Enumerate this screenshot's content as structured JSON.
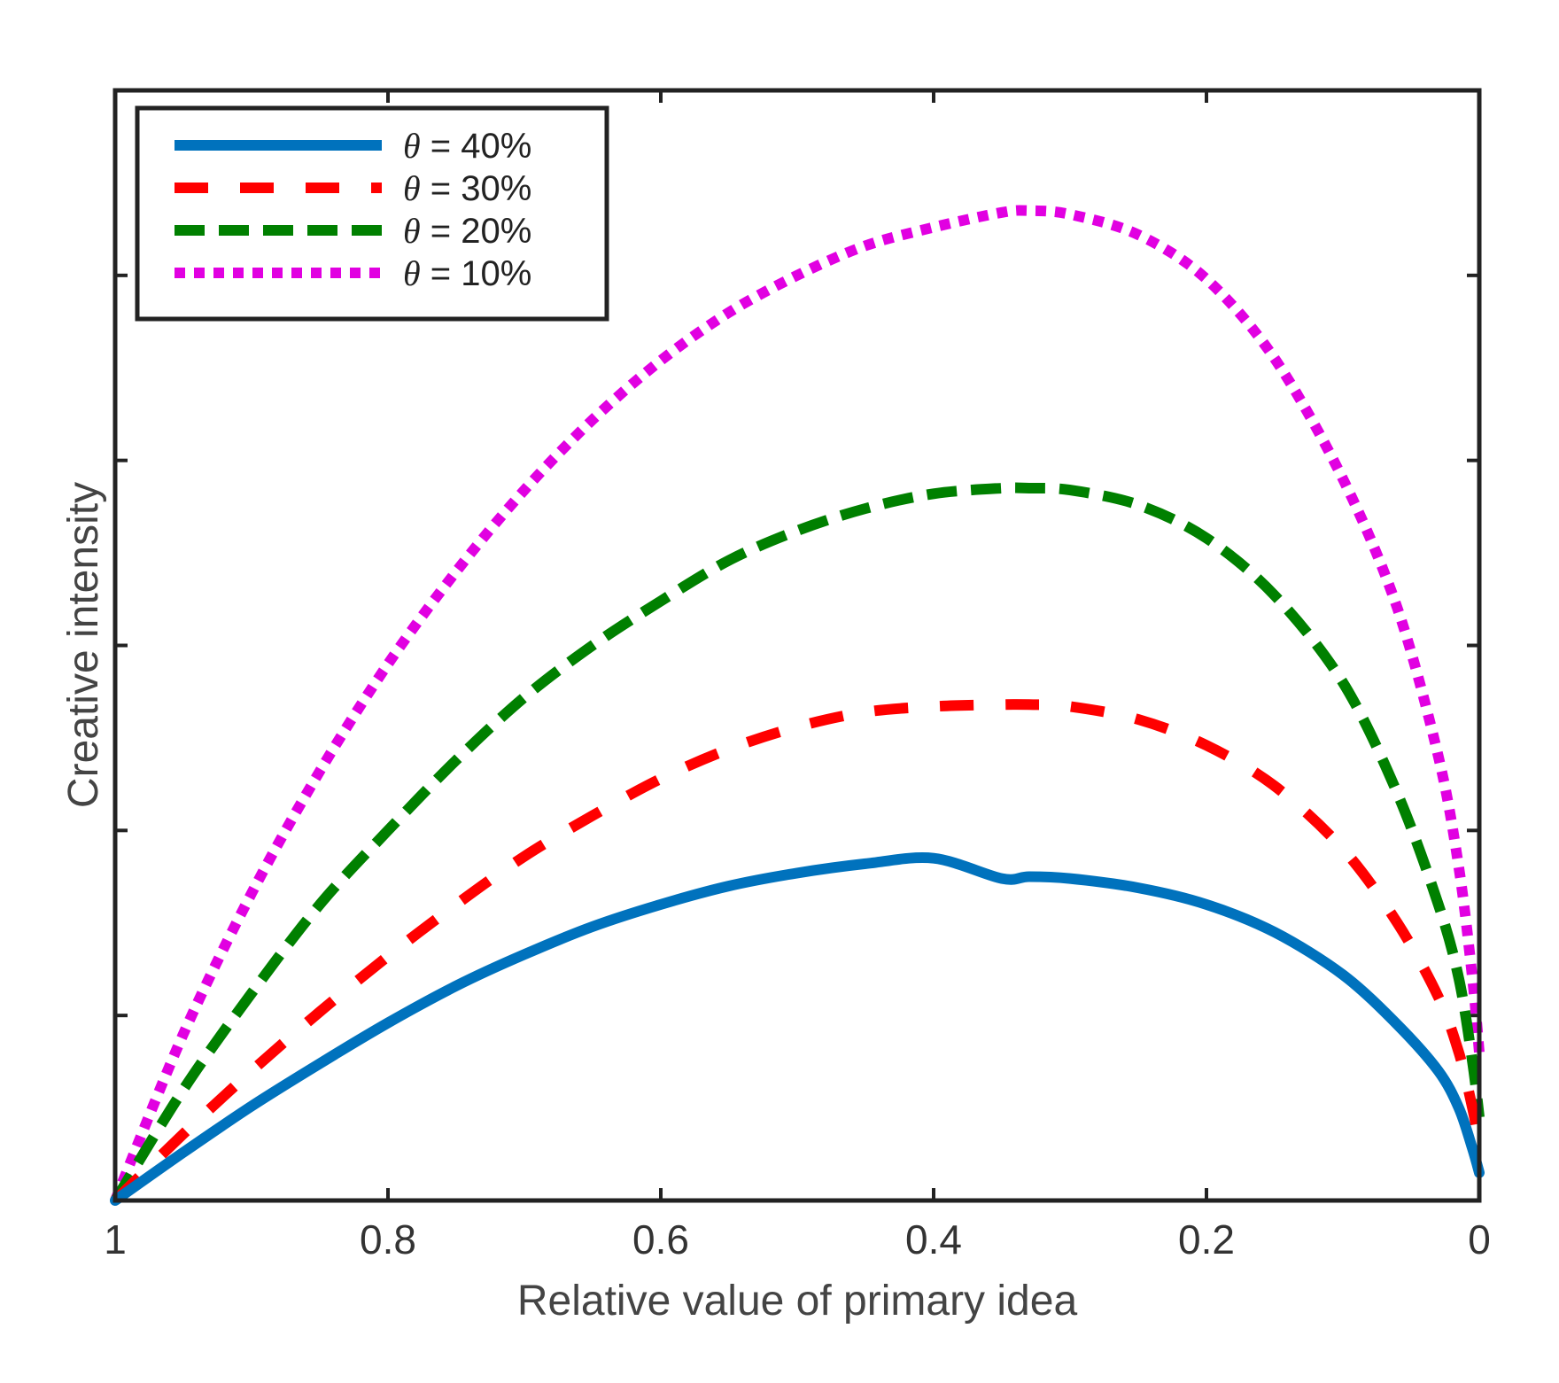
{
  "chart_data": {
    "type": "line",
    "title": "",
    "xlabel": "Relative value of primary idea",
    "ylabel": "Creative intensity",
    "xlim": [
      1,
      0
    ],
    "x_reversed": true,
    "ylim": [
      0,
      6
    ],
    "xticks": [
      {
        "value": 1,
        "label": "1"
      },
      {
        "value": 0.8,
        "label": "0.8"
      },
      {
        "value": 0.6,
        "label": "0.6"
      },
      {
        "value": 0.4,
        "label": "0.4"
      },
      {
        "value": 0.2,
        "label": "0.2"
      },
      {
        "value": 0,
        "label": "0"
      }
    ],
    "yticks": [
      1,
      2,
      3,
      4,
      5
    ],
    "ytick_labels_shown": false,
    "grid": false,
    "legend_position": "top-left",
    "series": [
      {
        "name": "θ = 40%",
        "legend_symbol": "θ",
        "legend_rest": " = 40%",
        "color": "#0072BD",
        "style": "solid",
        "x": [
          1,
          0.95,
          0.9,
          0.85,
          0.8,
          0.75,
          0.7,
          0.65,
          0.6,
          0.55,
          0.5,
          0.45,
          0.4,
          0.35,
          0.33,
          0.3,
          0.25,
          0.2,
          0.15,
          0.1,
          0.06,
          0.03,
          0.015,
          0.005,
          0
        ],
        "y": [
          0,
          0.26,
          0.51,
          0.74,
          0.96,
          1.16,
          1.33,
          1.48,
          1.6,
          1.7,
          1.77,
          1.82,
          1.85,
          1.74,
          1.75,
          1.74,
          1.69,
          1.6,
          1.45,
          1.22,
          0.95,
          0.7,
          0.5,
          0.28,
          0.15
        ]
      },
      {
        "name": "θ = 30%",
        "legend_symbol": "θ",
        "legend_rest": " = 30%",
        "color": "#FF0000",
        "style": "dashed",
        "x": [
          1,
          0.95,
          0.9,
          0.85,
          0.8,
          0.75,
          0.7,
          0.65,
          0.6,
          0.55,
          0.5,
          0.45,
          0.4,
          0.35,
          0.33,
          0.3,
          0.25,
          0.2,
          0.15,
          0.1,
          0.06,
          0.03,
          0.015,
          0.005,
          0
        ],
        "y": [
          0,
          0.36,
          0.7,
          1.02,
          1.32,
          1.6,
          1.86,
          2.08,
          2.28,
          2.44,
          2.56,
          2.64,
          2.67,
          2.68,
          2.68,
          2.67,
          2.6,
          2.46,
          2.24,
          1.9,
          1.5,
          1.1,
          0.8,
          0.5,
          0.3
        ]
      },
      {
        "name": "θ = 20%",
        "legend_symbol": "θ",
        "legend_rest": " = 20%",
        "color": "#008000",
        "style": "dash-dot",
        "x": [
          1,
          0.95,
          0.9,
          0.85,
          0.8,
          0.75,
          0.7,
          0.65,
          0.6,
          0.55,
          0.5,
          0.45,
          0.4,
          0.35,
          0.33,
          0.3,
          0.25,
          0.2,
          0.15,
          0.1,
          0.06,
          0.03,
          0.015,
          0.005,
          0
        ],
        "y": [
          0,
          0.6,
          1.12,
          1.6,
          2.0,
          2.38,
          2.72,
          3.0,
          3.24,
          3.46,
          3.62,
          3.74,
          3.82,
          3.85,
          3.85,
          3.84,
          3.76,
          3.58,
          3.27,
          2.8,
          2.2,
          1.6,
          1.2,
          0.75,
          0.45
        ]
      },
      {
        "name": "θ = 10%",
        "legend_symbol": "θ",
        "legend_rest": " = 10%",
        "color": "#E100E1",
        "style": "dotted",
        "x": [
          1,
          0.95,
          0.9,
          0.85,
          0.8,
          0.75,
          0.7,
          0.65,
          0.6,
          0.55,
          0.5,
          0.45,
          0.4,
          0.35,
          0.33,
          0.3,
          0.25,
          0.2,
          0.15,
          0.1,
          0.06,
          0.03,
          0.015,
          0.005,
          0
        ],
        "y": [
          0,
          0.9,
          1.66,
          2.32,
          2.9,
          3.4,
          3.84,
          4.22,
          4.54,
          4.8,
          5.0,
          5.16,
          5.26,
          5.34,
          5.35,
          5.33,
          5.22,
          4.98,
          4.55,
          3.9,
          3.2,
          2.4,
          1.8,
          1.2,
          0.8
        ]
      }
    ]
  }
}
